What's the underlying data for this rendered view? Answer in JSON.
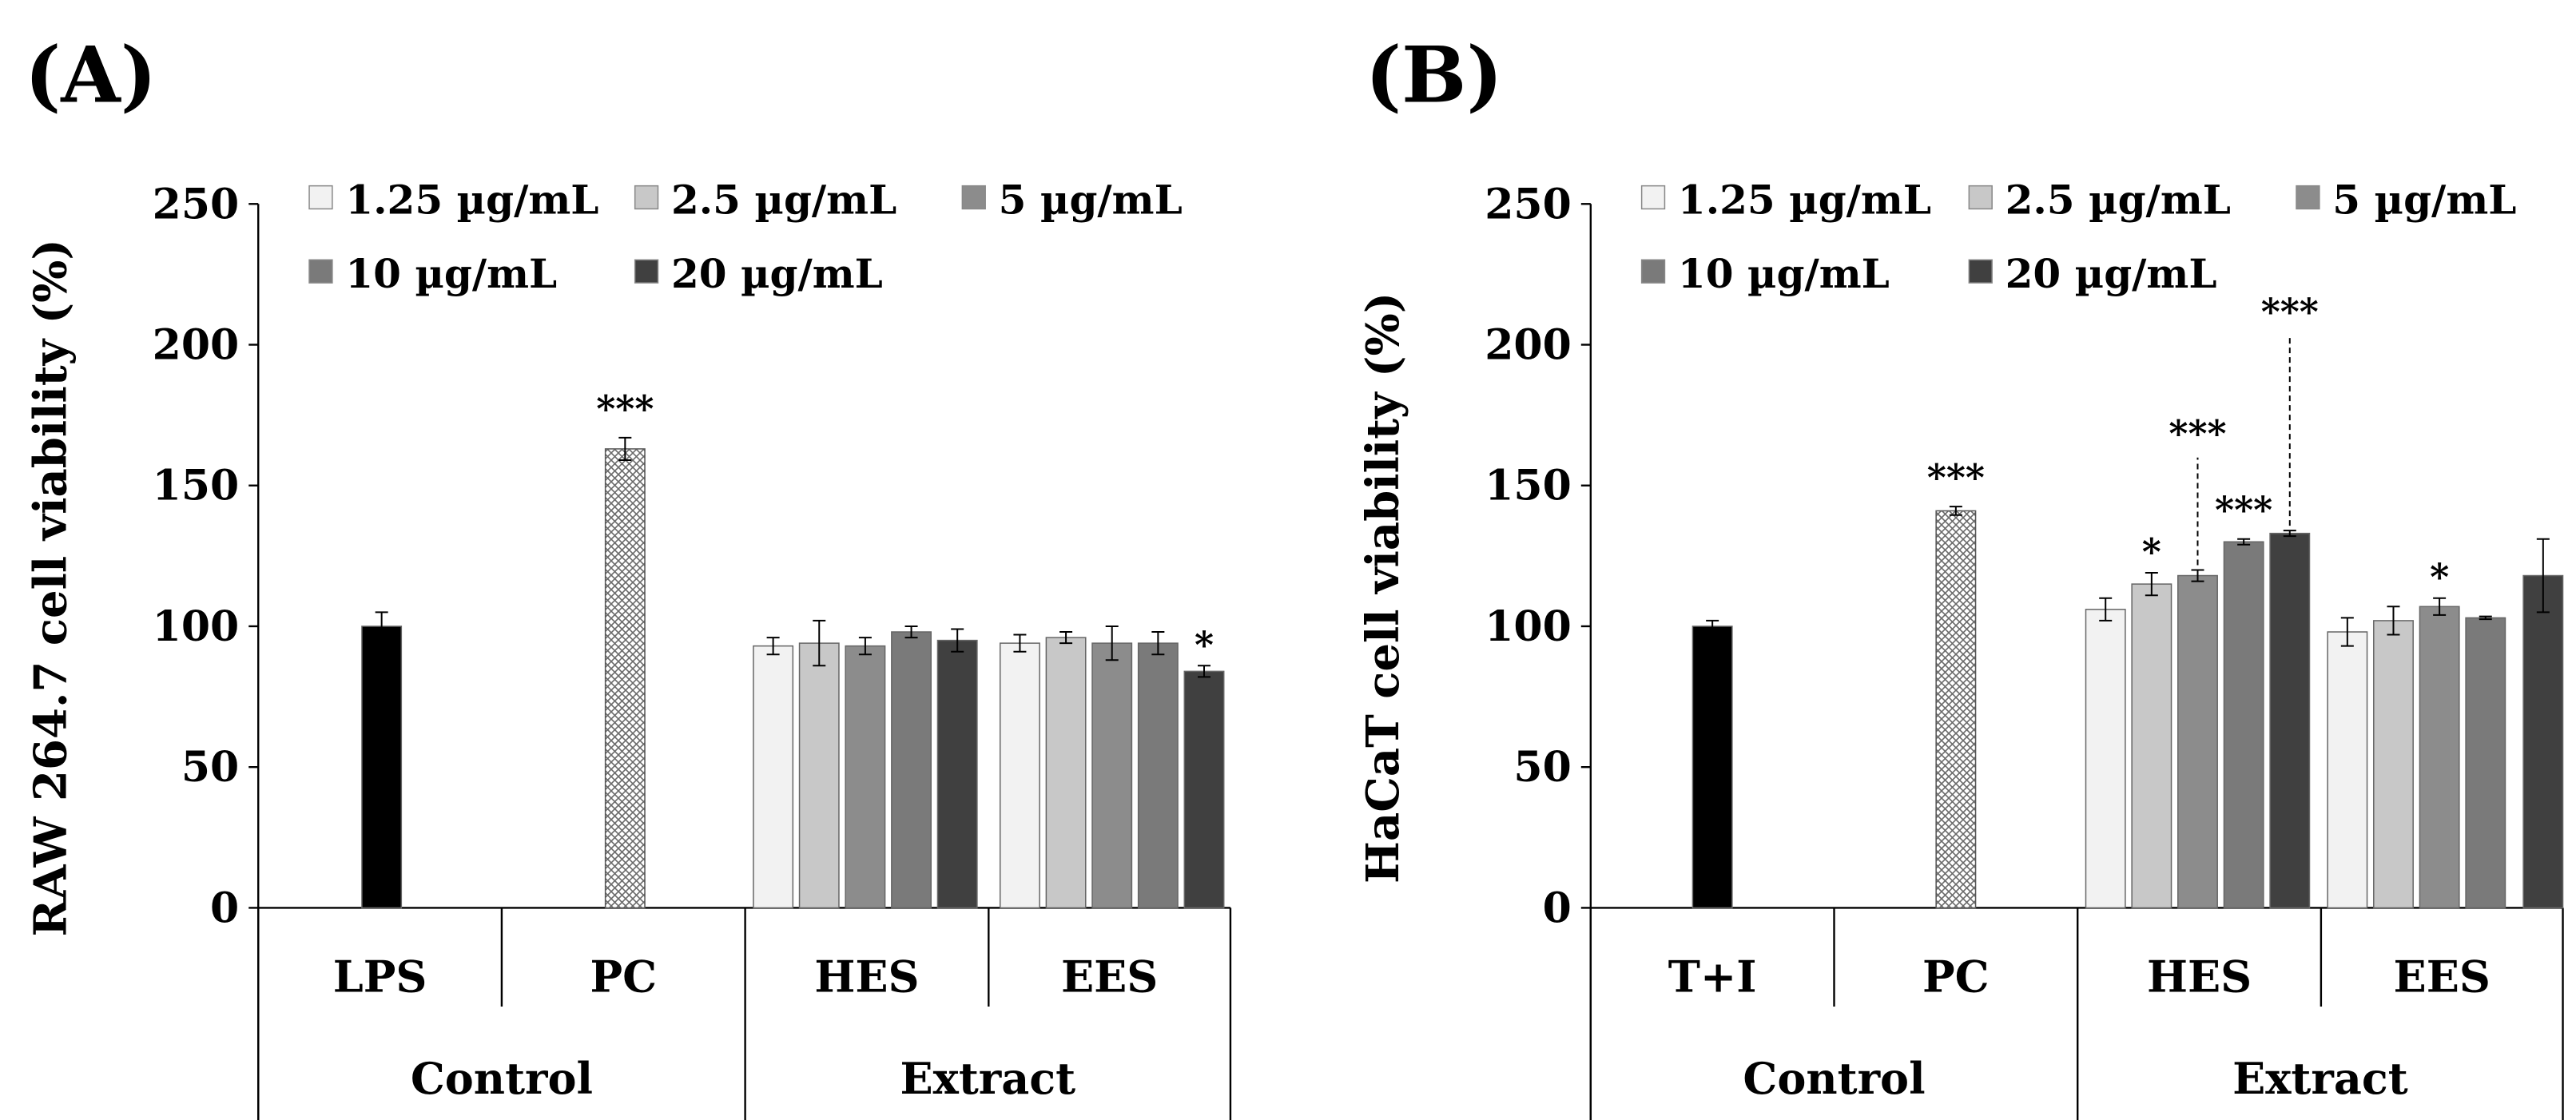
{
  "chart_data": [
    {
      "type": "bar",
      "panel_label": "(A)",
      "ylabel": "RAW 264.7 cell  viability (%)",
      "ylim": [
        0,
        250
      ],
      "yticks": [
        "0",
        "50",
        "100",
        "150",
        "200",
        "250"
      ],
      "legend": [
        {
          "name": "1.25 µg/mL",
          "color": "#f2f2f2"
        },
        {
          "name": "2.5 µg/mL",
          "color": "#c8c8c8"
        },
        {
          "name": "5 µg/mL",
          "color": "#8c8c8c"
        },
        {
          "name": "10 µg/mL",
          "color": "#7a7a7a"
        },
        {
          "name": "20 µg/mL",
          "color": "#404040"
        }
      ],
      "groups": [
        {
          "name": "Control",
          "categories": [
            {
              "label": "LPS",
              "bars": [
                {
                  "value": 100,
                  "err": 5,
                  "color": "#000000",
                  "sig": ""
                }
              ]
            },
            {
              "label": "PC",
              "bars": [
                {
                  "value": 163,
                  "err": 4,
                  "color": "#ffffff",
                  "pattern": "crosshatch",
                  "sig": "***"
                }
              ]
            }
          ]
        },
        {
          "name": "Extract",
          "categories": [
            {
              "label": "HES",
              "bars": [
                {
                  "value": 93,
                  "err": 3,
                  "color": "#f2f2f2",
                  "sig": ""
                },
                {
                  "value": 94,
                  "err": 8,
                  "color": "#c8c8c8",
                  "sig": ""
                },
                {
                  "value": 93,
                  "err": 3,
                  "color": "#8c8c8c",
                  "sig": ""
                },
                {
                  "value": 98,
                  "err": 2,
                  "color": "#7a7a7a",
                  "sig": ""
                },
                {
                  "value": 95,
                  "err": 4,
                  "color": "#404040",
                  "sig": ""
                }
              ]
            },
            {
              "label": "EES",
              "bars": [
                {
                  "value": 94,
                  "err": 3,
                  "color": "#f2f2f2",
                  "sig": ""
                },
                {
                  "value": 96,
                  "err": 2,
                  "color": "#c8c8c8",
                  "sig": ""
                },
                {
                  "value": 94,
                  "err": 6,
                  "color": "#8c8c8c",
                  "sig": ""
                },
                {
                  "value": 94,
                  "err": 4,
                  "color": "#7a7a7a",
                  "sig": ""
                },
                {
                  "value": 84,
                  "err": 2,
                  "color": "#404040",
                  "sig": "*"
                }
              ]
            }
          ]
        }
      ]
    },
    {
      "type": "bar",
      "panel_label": "(B)",
      "ylabel": "HaCaT cell  viability (%)",
      "ylim": [
        0,
        250
      ],
      "yticks": [
        "0",
        "50",
        "100",
        "150",
        "200",
        "250"
      ],
      "legend": [
        {
          "name": "1.25 µg/mL",
          "color": "#f2f2f2"
        },
        {
          "name": "2.5 µg/mL",
          "color": "#c8c8c8"
        },
        {
          "name": "5 µg/mL",
          "color": "#8c8c8c"
        },
        {
          "name": "10 µg/mL",
          "color": "#7a7a7a"
        },
        {
          "name": "20 µg/mL",
          "color": "#404040"
        }
      ],
      "groups": [
        {
          "name": "Control",
          "categories": [
            {
              "label": "T+I",
              "bars": [
                {
                  "value": 100,
                  "err": 2,
                  "color": "#000000",
                  "sig": ""
                }
              ]
            },
            {
              "label": "PC",
              "bars": [
                {
                  "value": 141,
                  "err": 1.5,
                  "color": "#ffffff",
                  "pattern": "crosshatch",
                  "sig": "***"
                }
              ]
            }
          ]
        },
        {
          "name": "Extract",
          "categories": [
            {
              "label": "HES",
              "bars": [
                {
                  "value": 106,
                  "err": 4,
                  "color": "#f2f2f2",
                  "sig": ""
                },
                {
                  "value": 115,
                  "err": 4,
                  "color": "#c8c8c8",
                  "sig": "*"
                },
                {
                  "value": 118,
                  "err": 2,
                  "color": "#8c8c8c",
                  "sig": "***",
                  "sig_leader": true
                },
                {
                  "value": 130,
                  "err": 1,
                  "color": "#7a7a7a",
                  "sig": "***"
                },
                {
                  "value": 133,
                  "err": 1,
                  "color": "#404040",
                  "sig": "***",
                  "sig_leader": true
                }
              ]
            },
            {
              "label": "EES",
              "bars": [
                {
                  "value": 98,
                  "err": 5,
                  "color": "#f2f2f2",
                  "sig": ""
                },
                {
                  "value": 102,
                  "err": 5,
                  "color": "#c8c8c8",
                  "sig": ""
                },
                {
                  "value": 107,
                  "err": 3,
                  "color": "#8c8c8c",
                  "sig": "*"
                },
                {
                  "value": 103,
                  "err": 0.5,
                  "color": "#7a7a7a",
                  "sig": ""
                },
                {
                  "value": 118,
                  "err": 13,
                  "color": "#404040",
                  "sig": ""
                }
              ]
            }
          ]
        }
      ]
    }
  ]
}
